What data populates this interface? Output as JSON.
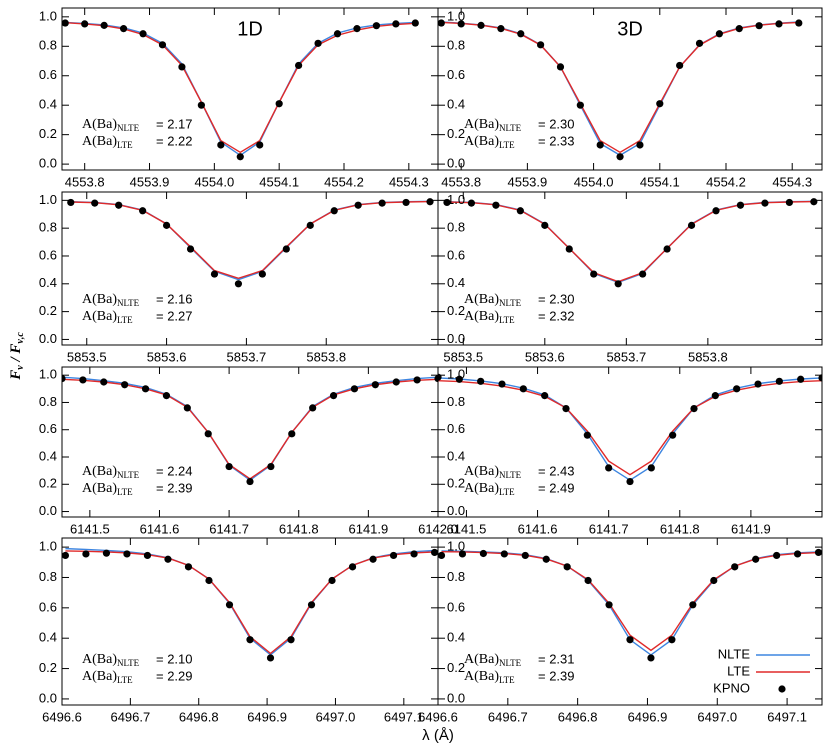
{
  "figure": {
    "xlabel": "λ (Å)",
    "ylabel": [
      {
        "text": "F",
        "sub": "ν"
      },
      {
        "text": "/ F",
        "sub": "ν,c"
      }
    ]
  },
  "chart_data": [
    {
      "type": "line",
      "title": "1D",
      "x": [
        4553.77,
        4553.8,
        4553.83,
        4553.86,
        4553.89,
        4553.92,
        4553.95,
        4553.98,
        4554.01,
        4554.04,
        4554.07,
        4554.1,
        4554.13,
        4554.16,
        4554.19,
        4554.22,
        4554.25,
        4554.28,
        4554.31
      ],
      "series": [
        {
          "color": "#3d85e0",
          "values": [
            0.962,
            0.955,
            0.945,
            0.925,
            0.89,
            0.82,
            0.68,
            0.42,
            0.15,
            0.06,
            0.15,
            0.42,
            0.68,
            0.82,
            0.89,
            0.925,
            0.945,
            0.955,
            0.962
          ]
        },
        {
          "color": "#e02a2a",
          "values": [
            0.96,
            0.952,
            0.94,
            0.918,
            0.88,
            0.81,
            0.67,
            0.42,
            0.16,
            0.08,
            0.16,
            0.42,
            0.67,
            0.81,
            0.875,
            0.91,
            0.935,
            0.948,
            0.956
          ]
        },
        {
          "color": "#000000",
          "style": "dots",
          "values": [
            0.958,
            0.952,
            0.942,
            0.92,
            0.885,
            0.81,
            0.66,
            0.4,
            0.13,
            0.05,
            0.13,
            0.41,
            0.67,
            0.82,
            0.885,
            0.92,
            0.94,
            0.952,
            0.958
          ]
        }
      ],
      "xlim": [
        4553.765,
        4554.345
      ],
      "ylim": [
        -0.04,
        1.06
      ],
      "xticks": [
        4553.8,
        4553.9,
        {
          "value": 4554.0,
          "label": "4554.0"
        },
        4554.1,
        4554.2,
        4554.3
      ],
      "yticks": [
        {
          "value": 0,
          "label": "0.0"
        },
        0.2,
        0.4,
        0.6,
        0.8,
        {
          "value": 1,
          "label": "1.0"
        }
      ],
      "annotations": [
        {
          "prefix": "A(Ba)",
          "sub": "NLTE",
          "text": "= 2.17"
        },
        {
          "prefix": "A(Ba)",
          "sub": "LTE",
          "text": "= 2.22"
        }
      ]
    },
    {
      "type": "line",
      "title": "3D",
      "x": [
        4553.77,
        4553.8,
        4553.83,
        4553.86,
        4553.89,
        4553.92,
        4553.95,
        4553.98,
        4554.01,
        4554.04,
        4554.07,
        4554.1,
        4554.13,
        4554.16,
        4554.19,
        4554.22,
        4554.25,
        4554.28,
        4554.31
      ],
      "series": [
        {
          "color": "#3d85e0",
          "values": [
            0.965,
            0.957,
            0.945,
            0.925,
            0.885,
            0.81,
            0.66,
            0.4,
            0.14,
            0.06,
            0.14,
            0.4,
            0.66,
            0.81,
            0.885,
            0.925,
            0.945,
            0.957,
            0.965
          ]
        },
        {
          "color": "#e02a2a",
          "values": [
            0.962,
            0.955,
            0.943,
            0.922,
            0.882,
            0.808,
            0.66,
            0.41,
            0.16,
            0.08,
            0.16,
            0.41,
            0.66,
            0.808,
            0.882,
            0.922,
            0.943,
            0.955,
            0.962
          ]
        },
        {
          "color": "#000000",
          "style": "dots",
          "values": [
            0.958,
            0.952,
            0.942,
            0.92,
            0.885,
            0.81,
            0.66,
            0.4,
            0.13,
            0.05,
            0.13,
            0.41,
            0.67,
            0.82,
            0.885,
            0.92,
            0.94,
            0.952,
            0.958
          ]
        }
      ],
      "xlim": [
        4553.765,
        4554.345
      ],
      "ylim": [
        -0.04,
        1.06
      ],
      "xticks": [
        4553.8,
        4553.9,
        {
          "value": 4554.0,
          "label": "4554.0"
        },
        4554.1,
        4554.2,
        4554.3
      ],
      "yticks": [
        {
          "value": 0,
          "label": "0.0"
        },
        0.2,
        0.4,
        0.6,
        0.8,
        {
          "value": 1,
          "label": "1.0"
        }
      ],
      "annotations": [
        {
          "prefix": "A(Ba)",
          "sub": "NLTE",
          "text": "= 2.30"
        },
        {
          "prefix": "A(Ba)",
          "sub": "LTE",
          "text": "= 2.33"
        }
      ]
    },
    {
      "type": "line",
      "x": [
        5853.48,
        5853.51,
        5853.54,
        5853.57,
        5853.6,
        5853.63,
        5853.66,
        5853.69,
        5853.72,
        5853.75,
        5853.78,
        5853.81,
        5853.84,
        5853.87,
        5853.9,
        5853.93
      ],
      "series": [
        {
          "color": "#3d85e0",
          "values": [
            0.99,
            0.985,
            0.97,
            0.93,
            0.83,
            0.66,
            0.49,
            0.43,
            0.49,
            0.66,
            0.83,
            0.93,
            0.97,
            0.985,
            0.99,
            0.993
          ]
        },
        {
          "color": "#e02a2a",
          "values": [
            0.988,
            0.983,
            0.968,
            0.928,
            0.83,
            0.665,
            0.495,
            0.44,
            0.495,
            0.665,
            0.83,
            0.928,
            0.968,
            0.983,
            0.988,
            0.991
          ]
        },
        {
          "color": "#000000",
          "style": "dots",
          "values": [
            0.985,
            0.98,
            0.965,
            0.925,
            0.82,
            0.65,
            0.47,
            0.4,
            0.47,
            0.65,
            0.82,
            0.925,
            0.965,
            0.98,
            0.985,
            0.99
          ]
        }
      ],
      "xlim": [
        5853.469,
        5853.94
      ],
      "ylim": [
        -0.04,
        1.06
      ],
      "xticks": [
        5853.5,
        5853.6,
        5853.7,
        5853.8
      ],
      "yticks": [
        {
          "value": 0,
          "label": "0.0"
        },
        0.2,
        0.4,
        0.6,
        0.8,
        {
          "value": 1,
          "label": "1.0"
        }
      ],
      "annotations": [
        {
          "prefix": "A(Ba)",
          "sub": "NLTE",
          "text": "= 2.16"
        },
        {
          "prefix": "A(Ba)",
          "sub": "LTE",
          "text": "= 2.27"
        }
      ]
    },
    {
      "type": "line",
      "x": [
        5853.48,
        5853.51,
        5853.54,
        5853.57,
        5853.6,
        5853.63,
        5853.66,
        5853.69,
        5853.72,
        5853.75,
        5853.78,
        5853.81,
        5853.84,
        5853.87,
        5853.9,
        5853.93
      ],
      "series": [
        {
          "color": "#3d85e0",
          "values": [
            0.99,
            0.985,
            0.97,
            0.93,
            0.83,
            0.655,
            0.475,
            0.41,
            0.475,
            0.655,
            0.83,
            0.93,
            0.97,
            0.985,
            0.99,
            0.993
          ]
        },
        {
          "color": "#e02a2a",
          "values": [
            0.988,
            0.983,
            0.968,
            0.928,
            0.828,
            0.655,
            0.48,
            0.415,
            0.48,
            0.655,
            0.828,
            0.928,
            0.968,
            0.983,
            0.988,
            0.991
          ]
        },
        {
          "color": "#000000",
          "style": "dots",
          "values": [
            0.985,
            0.98,
            0.965,
            0.925,
            0.82,
            0.65,
            0.47,
            0.4,
            0.47,
            0.65,
            0.82,
            0.925,
            0.965,
            0.98,
            0.985,
            0.99
          ]
        }
      ],
      "xlim": [
        5853.469,
        5853.94
      ],
      "ylim": [
        -0.04,
        1.06
      ],
      "xticks": [
        5853.5,
        5853.6,
        5853.7,
        5853.8
      ],
      "yticks": [
        {
          "value": 0,
          "label": "0.0"
        },
        0.2,
        0.4,
        0.6,
        0.8,
        {
          "value": 1,
          "label": "1.0"
        }
      ],
      "annotations": [
        {
          "prefix": "A(Ba)",
          "sub": "NLTE",
          "text": "= 2.30"
        },
        {
          "prefix": "A(Ba)",
          "sub": "LTE",
          "text": "= 2.32"
        }
      ]
    },
    {
      "type": "line",
      "x": [
        6141.46,
        6141.49,
        6141.52,
        6141.55,
        6141.58,
        6141.61,
        6141.64,
        6141.67,
        6141.7,
        6141.73,
        6141.76,
        6141.79,
        6141.82,
        6141.85,
        6141.88,
        6141.91,
        6141.94,
        6141.97,
        6142.0
      ],
      "series": [
        {
          "color": "#3d85e0",
          "values": [
            0.985,
            0.975,
            0.96,
            0.94,
            0.91,
            0.86,
            0.77,
            0.58,
            0.34,
            0.23,
            0.34,
            0.58,
            0.77,
            0.86,
            0.91,
            0.94,
            0.96,
            0.975,
            0.985
          ]
        },
        {
          "color": "#e02a2a",
          "values": [
            0.97,
            0.962,
            0.95,
            0.93,
            0.9,
            0.855,
            0.765,
            0.58,
            0.345,
            0.24,
            0.345,
            0.58,
            0.765,
            0.855,
            0.9,
            0.93,
            0.95,
            0.962,
            0.97
          ]
        },
        {
          "color": "#000000",
          "style": "dots",
          "values": [
            0.975,
            0.965,
            0.95,
            0.93,
            0.9,
            0.85,
            0.76,
            0.57,
            0.33,
            0.22,
            0.33,
            0.57,
            0.76,
            0.85,
            0.9,
            0.93,
            0.95,
            0.965,
            0.975
          ]
        }
      ],
      "xlim": [
        6141.46,
        6142.0
      ],
      "ylim": [
        -0.04,
        1.06
      ],
      "xticks": [
        6141.5,
        6141.6,
        6141.7,
        6141.8,
        6141.9,
        {
          "value": 6142.0,
          "label": "6142.0"
        }
      ],
      "yticks": [
        {
          "value": 0,
          "label": "0.0"
        },
        0.2,
        0.4,
        0.6,
        0.8,
        {
          "value": 1,
          "label": "1.0"
        }
      ],
      "annotations": [
        {
          "prefix": "A(Ba)",
          "sub": "NLTE",
          "text": "= 2.24"
        },
        {
          "prefix": "A(Ba)",
          "sub": "LTE",
          "text": "= 2.39"
        }
      ]
    },
    {
      "type": "line",
      "x": [
        6141.46,
        6141.49,
        6141.52,
        6141.55,
        6141.58,
        6141.61,
        6141.64,
        6141.67,
        6141.7,
        6141.73,
        6141.76,
        6141.79,
        6141.82,
        6141.85,
        6141.88,
        6141.91,
        6141.94,
        6141.97,
        6142.0
      ],
      "series": [
        {
          "color": "#3d85e0",
          "values": [
            0.98,
            0.972,
            0.958,
            0.938,
            0.905,
            0.855,
            0.76,
            0.57,
            0.33,
            0.23,
            0.33,
            0.57,
            0.76,
            0.855,
            0.905,
            0.938,
            0.958,
            0.972,
            0.98
          ]
        },
        {
          "color": "#e02a2a",
          "values": [
            0.96,
            0.953,
            0.94,
            0.92,
            0.89,
            0.845,
            0.76,
            0.59,
            0.37,
            0.27,
            0.37,
            0.59,
            0.76,
            0.845,
            0.89,
            0.92,
            0.94,
            0.953,
            0.96
          ]
        },
        {
          "color": "#000000",
          "style": "dots",
          "values": [
            0.985,
            0.97,
            0.955,
            0.935,
            0.9,
            0.85,
            0.755,
            0.56,
            0.32,
            0.22,
            0.32,
            0.56,
            0.755,
            0.85,
            0.9,
            0.935,
            0.955,
            0.97,
            0.98
          ]
        }
      ],
      "xlim": [
        6141.46,
        6142.0
      ],
      "ylim": [
        -0.04,
        1.06
      ],
      "xticks": [
        6141.5,
        6141.6,
        6141.7,
        6141.8,
        6141.9
      ],
      "yticks": [
        {
          "value": 0,
          "label": "0.0"
        },
        0.2,
        0.4,
        0.6,
        0.8,
        {
          "value": 1,
          "label": "1.0"
        }
      ],
      "annotations": [
        {
          "prefix": "A(Ba)",
          "sub": "NLTE",
          "text": "= 2.43"
        },
        {
          "prefix": "A(Ba)",
          "sub": "LTE",
          "text": "= 2.49"
        }
      ]
    },
    {
      "type": "line",
      "x": [
        6496.605,
        6496.635,
        6496.665,
        6496.695,
        6496.725,
        6496.755,
        6496.785,
        6496.815,
        6496.845,
        6496.875,
        6496.905,
        6496.935,
        6496.965,
        6496.995,
        6497.025,
        6497.055,
        6497.085,
        6497.115,
        6497.145
      ],
      "series": [
        {
          "color": "#3d85e0",
          "values": [
            0.99,
            0.985,
            0.978,
            0.97,
            0.955,
            0.93,
            0.88,
            0.79,
            0.63,
            0.4,
            0.29,
            0.4,
            0.63,
            0.79,
            0.88,
            0.93,
            0.955,
            0.97,
            0.978
          ]
        },
        {
          "color": "#e02a2a",
          "values": [
            0.975,
            0.972,
            0.968,
            0.962,
            0.95,
            0.928,
            0.88,
            0.79,
            0.635,
            0.41,
            0.3,
            0.41,
            0.635,
            0.79,
            0.88,
            0.928,
            0.95,
            0.962,
            0.968
          ]
        },
        {
          "color": "#000000",
          "style": "dots",
          "values": [
            0.945,
            0.955,
            0.96,
            0.955,
            0.945,
            0.92,
            0.87,
            0.78,
            0.62,
            0.39,
            0.27,
            0.39,
            0.62,
            0.78,
            0.87,
            0.92,
            0.945,
            0.955,
            0.965
          ]
        }
      ],
      "xlim": [
        6496.6,
        6497.15
      ],
      "ylim": [
        -0.04,
        1.06
      ],
      "xticks": [
        6496.6,
        6496.7,
        6496.8,
        6496.9,
        {
          "value": 6497.0,
          "label": "6497.0"
        },
        6497.1
      ],
      "yticks": [
        {
          "value": 0,
          "label": "0.0"
        },
        0.2,
        0.4,
        0.6,
        0.8,
        {
          "value": 1,
          "label": "1.0"
        }
      ],
      "annotations": [
        {
          "prefix": "A(Ba)",
          "sub": "NLTE",
          "text": "= 2.10"
        },
        {
          "prefix": "A(Ba)",
          "sub": "LTE",
          "text": "= 2.29"
        }
      ]
    },
    {
      "type": "line",
      "x": [
        6496.605,
        6496.635,
        6496.665,
        6496.695,
        6496.725,
        6496.755,
        6496.785,
        6496.815,
        6496.845,
        6496.875,
        6496.905,
        6496.935,
        6496.965,
        6496.995,
        6497.025,
        6497.055,
        6497.085,
        6497.115,
        6497.145
      ],
      "series": [
        {
          "name": "NLTE",
          "color": "#3d85e0",
          "values": [
            0.975,
            0.972,
            0.968,
            0.962,
            0.95,
            0.925,
            0.875,
            0.78,
            0.62,
            0.39,
            0.29,
            0.39,
            0.62,
            0.78,
            0.875,
            0.925,
            0.95,
            0.962,
            0.968
          ]
        },
        {
          "name": "LTE",
          "color": "#e02a2a",
          "values": [
            0.97,
            0.968,
            0.964,
            0.958,
            0.946,
            0.922,
            0.875,
            0.785,
            0.63,
            0.42,
            0.32,
            0.42,
            0.63,
            0.785,
            0.875,
            0.922,
            0.946,
            0.958,
            0.964
          ]
        },
        {
          "name": "KPNO",
          "color": "#000000",
          "style": "dots",
          "values": [
            0.945,
            0.955,
            0.958,
            0.955,
            0.945,
            0.92,
            0.87,
            0.78,
            0.62,
            0.39,
            0.27,
            0.39,
            0.62,
            0.78,
            0.87,
            0.92,
            0.945,
            0.955,
            0.965
          ]
        }
      ],
      "xlim": [
        6496.6,
        6497.15
      ],
      "ylim": [
        -0.04,
        1.06
      ],
      "xticks": [
        6496.6,
        6496.7,
        6496.8,
        6496.9,
        {
          "value": 6497.0,
          "label": "6497.0"
        },
        6497.1
      ],
      "yticks": [
        {
          "value": 0,
          "label": "0.0"
        },
        0.2,
        0.4,
        0.6,
        0.8,
        {
          "value": 1,
          "label": "1.0"
        }
      ],
      "annotations": [
        {
          "prefix": "A(Ba)",
          "sub": "NLTE",
          "text": "= 2.31"
        },
        {
          "prefix": "A(Ba)",
          "sub": "LTE",
          "text": "= 2.39"
        }
      ],
      "legend": "lower right"
    }
  ]
}
